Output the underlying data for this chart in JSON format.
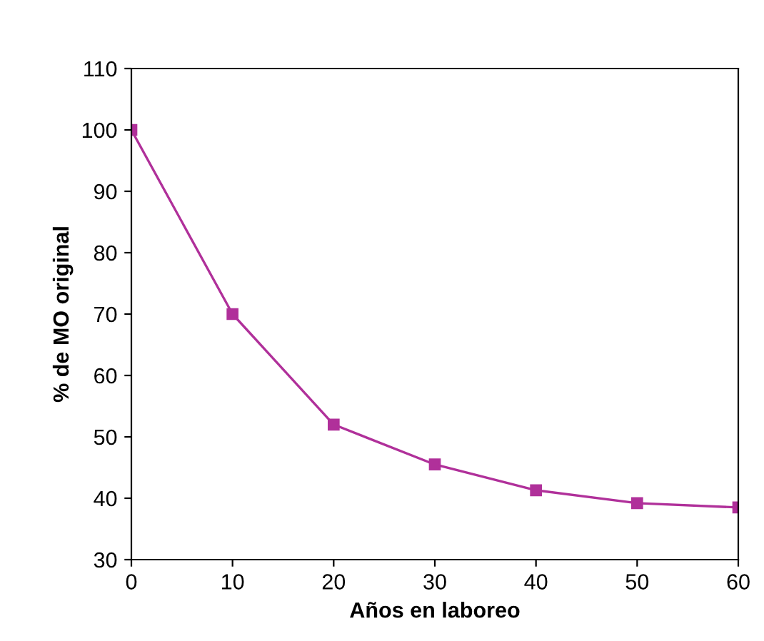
{
  "chart_data": {
    "type": "line",
    "xlabel": "Años en laboreo",
    "ylabel": "% de MO original",
    "x": [
      0,
      10,
      20,
      30,
      40,
      50,
      60
    ],
    "series": [
      {
        "color": "#b0309a",
        "values": [
          100,
          70,
          52,
          45.5,
          41.3,
          39.2,
          38.5
        ]
      }
    ],
    "xlim": [
      0,
      60
    ],
    "xticks": [
      0,
      10,
      20,
      30,
      40,
      50,
      60
    ],
    "ylim": [
      30,
      110
    ],
    "yticks": [
      30,
      40,
      50,
      60,
      70,
      80,
      90,
      100,
      110
    ],
    "marker": "square",
    "line_style": "solid",
    "grid": false,
    "legend": false
  }
}
